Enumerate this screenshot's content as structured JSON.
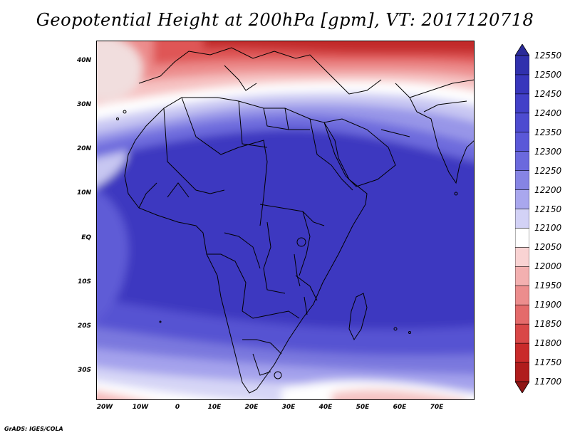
{
  "title": "Geopotential Height at 200hPa [gpm], VT: 2017120718",
  "lat_labels": [
    "40N",
    "30N",
    "20N",
    "10N",
    "EQ",
    "10S",
    "20S",
    "30S"
  ],
  "lon_labels": [
    "20W",
    "10W",
    "0",
    "10E",
    "20E",
    "30E",
    "40E",
    "50E",
    "60E",
    "70E"
  ],
  "colorbar": {
    "levels": [
      "12550",
      "12500",
      "12450",
      "12400",
      "12350",
      "12300",
      "12250",
      "12200",
      "12150",
      "12100",
      "12050",
      "12000",
      "11950",
      "11900",
      "11850",
      "11800",
      "11750",
      "11700"
    ],
    "colors": [
      "#2a2a99",
      "#3030ad",
      "#3836bc",
      "#4240c8",
      "#4d4bd0",
      "#5a58d8",
      "#6b69dd",
      "#8684e4",
      "#a9a7ee",
      "#d3d2f6",
      "#ffffff",
      "#f9d3d3",
      "#f3b0b0",
      "#ec8d8d",
      "#e46a6a",
      "#d94747",
      "#c92a2a",
      "#b01c1c",
      "#8f1414"
    ]
  },
  "credit": "GrADS: IGES/COLA",
  "map": {
    "projection": "lat-lon",
    "variable": "Geopotential Height",
    "level": "200hPa",
    "units": "gpm",
    "valid_time": "2017120718"
  }
}
